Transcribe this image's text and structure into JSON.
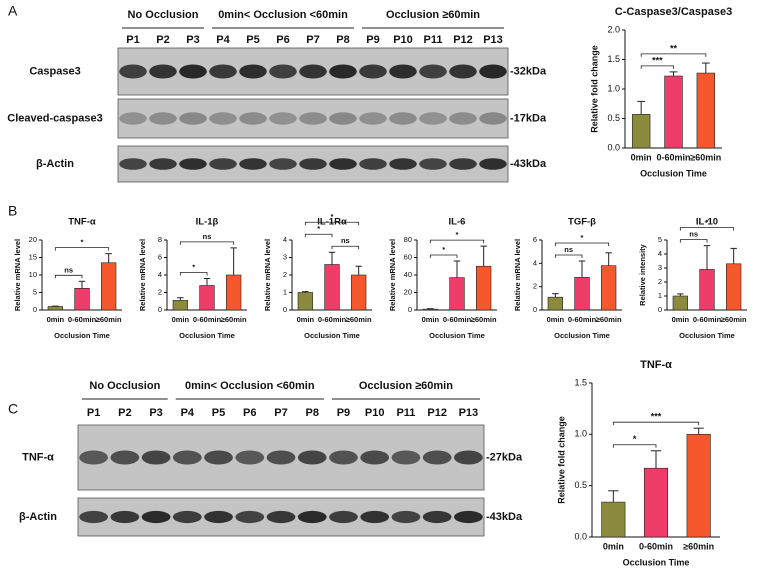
{
  "panels": [
    {
      "label": "A",
      "groups": [
        {
          "name": "No Occlusion",
          "lanes": [
            "P1",
            "P2",
            "P3"
          ]
        },
        {
          "name": "0min< Occlusion <60min",
          "lanes": [
            "P4",
            "P5",
            "P6",
            "P7",
            "P8"
          ]
        },
        {
          "name": "Occlusion ≥60min",
          "lanes": [
            "P9",
            "P10",
            "P11",
            "P12",
            "P13"
          ]
        }
      ],
      "rows": [
        {
          "name": "Caspase3",
          "size": "-32kDa"
        },
        {
          "name": "Cleaved-caspase3",
          "size": "-17kDa"
        },
        {
          "name": "β-Actin",
          "size": "-43kDa"
        }
      ]
    },
    {
      "label": "B"
    },
    {
      "label": "C",
      "groups": [
        {
          "name": "No Occlusion",
          "lanes": [
            "P1",
            "P2",
            "P3"
          ]
        },
        {
          "name": "0min< Occlusion <60min",
          "lanes": [
            "P4",
            "P5",
            "P6",
            "P7",
            "P8"
          ]
        },
        {
          "name": "Occlusion ≥60min",
          "lanes": [
            "P9",
            "P10",
            "P11",
            "P12",
            "P13"
          ]
        }
      ],
      "rows": [
        {
          "name": "TNF-α",
          "size": "-27kDa"
        },
        {
          "name": "β-Actin",
          "size": "-43kDa"
        }
      ]
    }
  ],
  "chart_data": [
    {
      "type": "bar",
      "title": "C-Caspase3/Caspase3",
      "x_label": "Occlusion Time",
      "y_label": "Relative fold change",
      "categories": [
        "0min",
        "0-60min",
        "≥60min"
      ],
      "values": [
        0.57,
        1.22,
        1.27
      ],
      "errors": [
        0.22,
        0.07,
        0.17
      ],
      "colors": [
        "#8c8a3c",
        "#ee3d69",
        "#f4582c"
      ],
      "ylim": [
        0,
        2
      ],
      "yticks": [
        {
          "value": 0,
          "label": "0.0"
        },
        0.5,
        {
          "value": 1,
          "label": "1.0"
        },
        1.5,
        {
          "value": 2,
          "label": "2.0"
        }
      ],
      "grid": false,
      "significance": [
        {
          "text": "***",
          "between": [
            0,
            1
          ]
        },
        {
          "text": "**",
          "between": [
            0,
            2
          ]
        }
      ]
    },
    {
      "type": "bar",
      "title": "TNF-α",
      "x_label": "Occlusion Time",
      "y_label": "Relative mRNA level",
      "categories": [
        "0min",
        "0-60min",
        "≥60min"
      ],
      "values": [
        1,
        6.2,
        13.5
      ],
      "errors": [
        0.1,
        2,
        2.6
      ],
      "colors": [
        "#8c8a3c",
        "#ee3d69",
        "#f4582c"
      ],
      "ylim": [
        0,
        20
      ],
      "yticks": [
        0,
        5,
        10,
        15,
        20
      ],
      "grid": false,
      "significance": [
        {
          "text": "ns",
          "between": [
            0,
            1
          ]
        },
        {
          "text": "*",
          "between": [
            0,
            2
          ]
        }
      ]
    },
    {
      "type": "bar",
      "title": "IL-1β",
      "x_label": "Occlusion Time",
      "y_label": "Relative mRNA level",
      "categories": [
        "0min",
        "0-60min",
        "≥60min"
      ],
      "values": [
        1.1,
        2.8,
        4
      ],
      "errors": [
        0.3,
        0.8,
        3.1
      ],
      "colors": [
        "#8c8a3c",
        "#ee3d69",
        "#f4582c"
      ],
      "ylim": [
        0,
        8
      ],
      "yticks": [
        0,
        2,
        4,
        6,
        8
      ],
      "grid": false,
      "significance": [
        {
          "text": "*",
          "between": [
            0,
            1
          ]
        },
        {
          "text": "ns",
          "between": [
            0,
            2
          ]
        }
      ]
    },
    {
      "type": "bar",
      "title": "IL-1Rα",
      "x_label": "Occlusion Time",
      "y_label": "Relative mRNA level",
      "categories": [
        "0min",
        "0-60min",
        "≥60min"
      ],
      "values": [
        1,
        2.6,
        2
      ],
      "errors": [
        0.05,
        0.7,
        0.5
      ],
      "colors": [
        "#8c8a3c",
        "#ee3d69",
        "#f4582c"
      ],
      "ylim": [
        0,
        4
      ],
      "yticks": [
        0,
        1,
        2,
        3,
        4
      ],
      "grid": false,
      "significance": [
        {
          "text": "ns",
          "between": [
            1,
            2
          ]
        },
        {
          "text": "*",
          "between": [
            0,
            1
          ]
        },
        {
          "text": "*",
          "between": [
            0,
            2
          ]
        }
      ]
    },
    {
      "type": "bar",
      "title": "IL-6",
      "x_label": "Occlusion Time",
      "y_label": "Relative mRNA level",
      "categories": [
        "0min",
        "0-60min",
        "≥60min"
      ],
      "values": [
        1,
        37,
        50
      ],
      "errors": [
        0.5,
        19,
        23
      ],
      "colors": [
        "#8c8a3c",
        "#ee3d69",
        "#f4582c"
      ],
      "ylim": [
        0,
        80
      ],
      "yticks": [
        0,
        20,
        40,
        60,
        80
      ],
      "grid": false,
      "significance": [
        {
          "text": "*",
          "between": [
            0,
            1
          ]
        },
        {
          "text": "*",
          "between": [
            0,
            2
          ]
        }
      ]
    },
    {
      "type": "bar",
      "title": "TGF-β",
      "x_label": "Occlusion Time",
      "y_label": "Relative mRNA level",
      "categories": [
        "0min",
        "0-60min",
        "≥60min"
      ],
      "values": [
        1.1,
        2.8,
        3.8
      ],
      "errors": [
        0.3,
        1.4,
        1.1
      ],
      "colors": [
        "#8c8a3c",
        "#ee3d69",
        "#f4582c"
      ],
      "ylim": [
        0,
        6
      ],
      "yticks": [
        0,
        2,
        4,
        6
      ],
      "grid": false,
      "significance": [
        {
          "text": "ns",
          "between": [
            0,
            1
          ]
        },
        {
          "text": "*",
          "between": [
            0,
            2
          ]
        }
      ]
    },
    {
      "type": "bar",
      "title": "IL-10",
      "x_label": "Occlusion Time",
      "y_label": "Relative intensity",
      "categories": [
        "0min",
        "0-60min",
        "≥60min"
      ],
      "values": [
        1,
        2.9,
        3.3
      ],
      "errors": [
        0.15,
        1.7,
        1.1
      ],
      "colors": [
        "#8c8a3c",
        "#ee3d69",
        "#f4582c"
      ],
      "ylim": [
        0,
        5
      ],
      "yticks": [
        0,
        1,
        2,
        3,
        4,
        5
      ],
      "grid": false,
      "significance": [
        {
          "text": "ns",
          "between": [
            0,
            1
          ]
        },
        {
          "text": "*",
          "between": [
            0,
            2
          ]
        }
      ]
    },
    {
      "type": "bar",
      "title": "TNF-α",
      "x_label": "Occlusion Time",
      "y_label": "Relative fold change",
      "categories": [
        "0min",
        "0-60min",
        "≥60min"
      ],
      "values": [
        0.34,
        0.67,
        1
      ],
      "errors": [
        0.11,
        0.17,
        0.06
      ],
      "colors": [
        "#8c8a3c",
        "#ee3d69",
        "#f4582c"
      ],
      "ylim": [
        0,
        1.5
      ],
      "yticks": [
        {
          "value": 0,
          "label": "0.0"
        },
        0.5,
        {
          "value": 1,
          "label": "1.0"
        },
        1.5
      ],
      "grid": false,
      "significance": [
        {
          "text": "*",
          "between": [
            0,
            1
          ]
        },
        {
          "text": "***",
          "between": [
            0,
            2
          ]
        }
      ]
    }
  ]
}
